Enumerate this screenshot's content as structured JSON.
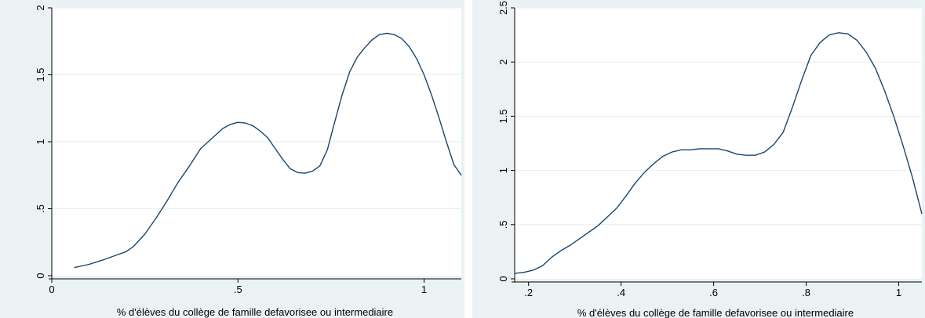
{
  "chart_data": [
    {
      "type": "line",
      "xlabel": "% d'élèves du collège de famille defavorisee ou intermediaire",
      "ylabel": "",
      "xlim": [
        0,
        1.1
      ],
      "ylim": [
        0,
        2
      ],
      "xticks": [
        0,
        0.5,
        1
      ],
      "xtick_labels": [
        "0",
        ".5",
        "1"
      ],
      "yticks": [
        0,
        0.5,
        1,
        1.5,
        2
      ],
      "ytick_labels": [
        "0",
        ".5",
        "1",
        "1.5",
        "2"
      ],
      "grid": "horizontal",
      "legend": "none",
      "line_color": "#1a476f",
      "series": [
        {
          "x": [
            0.06,
            0.1,
            0.14,
            0.18,
            0.2,
            0.22,
            0.25,
            0.28,
            0.31,
            0.34,
            0.37,
            0.4,
            0.42,
            0.44,
            0.46,
            0.48,
            0.5,
            0.52,
            0.54,
            0.56,
            0.58,
            0.6,
            0.62,
            0.64,
            0.66,
            0.68,
            0.7,
            0.72,
            0.74,
            0.76,
            0.78,
            0.8,
            0.82,
            0.84,
            0.86,
            0.88,
            0.9,
            0.92,
            0.94,
            0.96,
            0.98,
            1.0,
            1.02,
            1.04,
            1.06,
            1.08,
            1.1
          ],
          "y": [
            0.06,
            0.085,
            0.12,
            0.16,
            0.18,
            0.22,
            0.31,
            0.43,
            0.56,
            0.7,
            0.82,
            0.95,
            1.0,
            1.05,
            1.1,
            1.13,
            1.145,
            1.14,
            1.12,
            1.08,
            1.03,
            0.95,
            0.87,
            0.8,
            0.77,
            0.765,
            0.78,
            0.82,
            0.94,
            1.15,
            1.35,
            1.52,
            1.63,
            1.7,
            1.76,
            1.8,
            1.81,
            1.8,
            1.77,
            1.71,
            1.62,
            1.5,
            1.35,
            1.18,
            1.0,
            0.83,
            0.75
          ]
        }
      ]
    },
    {
      "type": "line",
      "xlabel": "% d'élèves du collège de famille defavorisee ou intermediaire",
      "ylabel": "",
      "xlim": [
        0.17,
        1.05
      ],
      "ylim": [
        0,
        2.5
      ],
      "xticks": [
        0.2,
        0.4,
        0.6,
        0.8,
        1
      ],
      "xtick_labels": [
        ".2",
        ".4",
        ".6",
        ".8",
        "1"
      ],
      "yticks": [
        0,
        0.5,
        1,
        1.5,
        2,
        2.5
      ],
      "ytick_labels": [
        "0",
        ".5",
        "1",
        "1.5",
        "2",
        "2.5"
      ],
      "grid": "horizontal",
      "legend": "none",
      "line_color": "#1a476f",
      "series": [
        {
          "x": [
            0.17,
            0.19,
            0.21,
            0.23,
            0.25,
            0.27,
            0.29,
            0.31,
            0.33,
            0.35,
            0.37,
            0.39,
            0.41,
            0.43,
            0.45,
            0.47,
            0.49,
            0.51,
            0.53,
            0.55,
            0.57,
            0.59,
            0.61,
            0.63,
            0.65,
            0.67,
            0.69,
            0.71,
            0.73,
            0.75,
            0.77,
            0.79,
            0.81,
            0.83,
            0.85,
            0.87,
            0.89,
            0.91,
            0.93,
            0.95,
            0.97,
            0.99,
            1.01,
            1.03,
            1.05
          ],
          "y": [
            0.05,
            0.06,
            0.08,
            0.12,
            0.2,
            0.26,
            0.31,
            0.37,
            0.43,
            0.49,
            0.57,
            0.65,
            0.76,
            0.88,
            0.98,
            1.06,
            1.13,
            1.17,
            1.19,
            1.19,
            1.2,
            1.2,
            1.2,
            1.18,
            1.15,
            1.14,
            1.14,
            1.17,
            1.24,
            1.35,
            1.58,
            1.83,
            2.06,
            2.18,
            2.25,
            2.27,
            2.26,
            2.2,
            2.09,
            1.94,
            1.73,
            1.49,
            1.22,
            0.93,
            0.6
          ]
        }
      ]
    }
  ]
}
